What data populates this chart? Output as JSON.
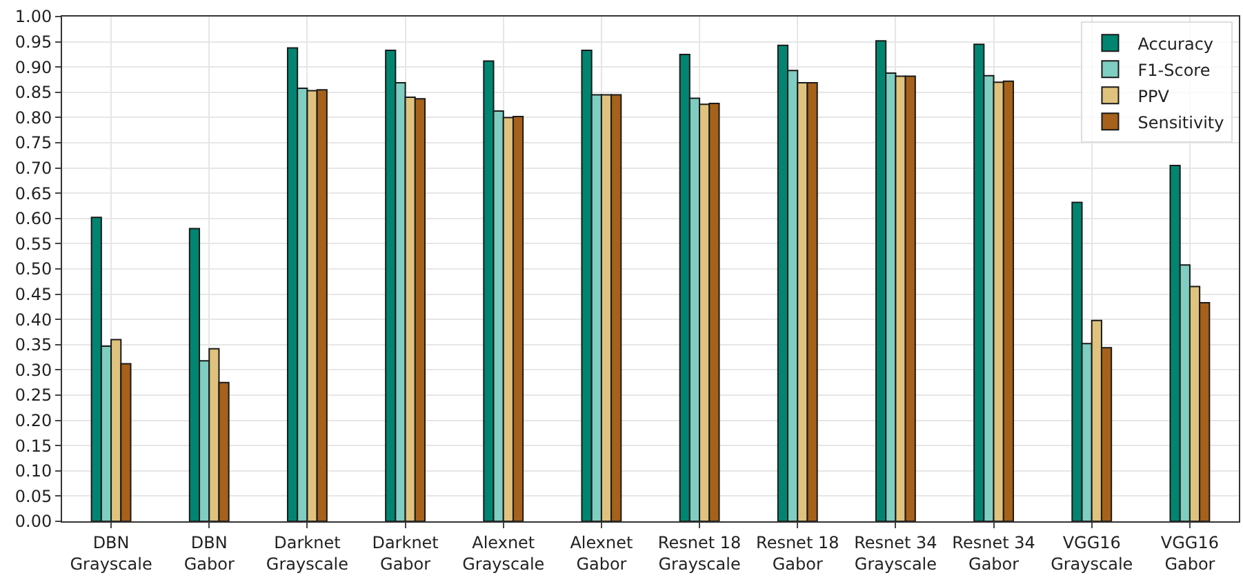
{
  "chart_data": {
    "type": "bar",
    "categories": [
      "DBN\nGrayscale",
      "DBN\nGabor",
      "Darknet\nGrayscale",
      "Darknet\nGabor",
      "Alexnet\nGrayscale",
      "Alexnet\nGabor",
      "Resnet 18\nGrayscale",
      "Resnet 18\nGabor",
      "Resnet 34\nGrayscale",
      "Resnet 34\nGabor",
      "VGG16\nGrayscale",
      "VGG16\nGabor"
    ],
    "series": [
      {
        "name": "Accuracy",
        "color": "#018571",
        "values": [
          0.602,
          0.58,
          0.938,
          0.933,
          0.912,
          0.933,
          0.925,
          0.943,
          0.952,
          0.945,
          0.632,
          0.705
        ]
      },
      {
        "name": "F1-Score",
        "color": "#80cdc1",
        "values": [
          0.347,
          0.318,
          0.858,
          0.869,
          0.813,
          0.845,
          0.838,
          0.893,
          0.888,
          0.883,
          0.352,
          0.508
        ]
      },
      {
        "name": "PPV",
        "color": "#dfc27d",
        "values": [
          0.36,
          0.342,
          0.853,
          0.84,
          0.8,
          0.845,
          0.826,
          0.869,
          0.882,
          0.87,
          0.398,
          0.465
        ]
      },
      {
        "name": "Sensitivity",
        "color": "#a6611a",
        "values": [
          0.312,
          0.275,
          0.855,
          0.837,
          0.802,
          0.845,
          0.828,
          0.869,
          0.882,
          0.872,
          0.344,
          0.433
        ]
      }
    ],
    "ylim": [
      0,
      1
    ],
    "yticks": [
      {
        "value": 0,
        "label": "0.00"
      },
      {
        "value": 0.05,
        "label": "0.05"
      },
      {
        "value": 0.1,
        "label": "0.10"
      },
      {
        "value": 0.15,
        "label": "0.15"
      },
      {
        "value": 0.2,
        "label": "0.20"
      },
      {
        "value": 0.25,
        "label": "0.25"
      },
      {
        "value": 0.3,
        "label": "0.30"
      },
      {
        "value": 0.35,
        "label": "0.35"
      },
      {
        "value": 0.4,
        "label": "0.40"
      },
      {
        "value": 0.45,
        "label": "0.45"
      },
      {
        "value": 0.5,
        "label": "0.50"
      },
      {
        "value": 0.55,
        "label": "0.55"
      },
      {
        "value": 0.6,
        "label": "0.60"
      },
      {
        "value": 0.65,
        "label": "0.65"
      },
      {
        "value": 0.7,
        "label": "0.70"
      },
      {
        "value": 0.75,
        "label": "0.75"
      },
      {
        "value": 0.8,
        "label": "0.80"
      },
      {
        "value": 0.85,
        "label": "0.85"
      },
      {
        "value": 0.9,
        "label": "0.90"
      },
      {
        "value": 0.95,
        "label": "0.95"
      },
      {
        "value": 1,
        "label": "1.00"
      }
    ],
    "grid": true,
    "legend": "top right"
  }
}
